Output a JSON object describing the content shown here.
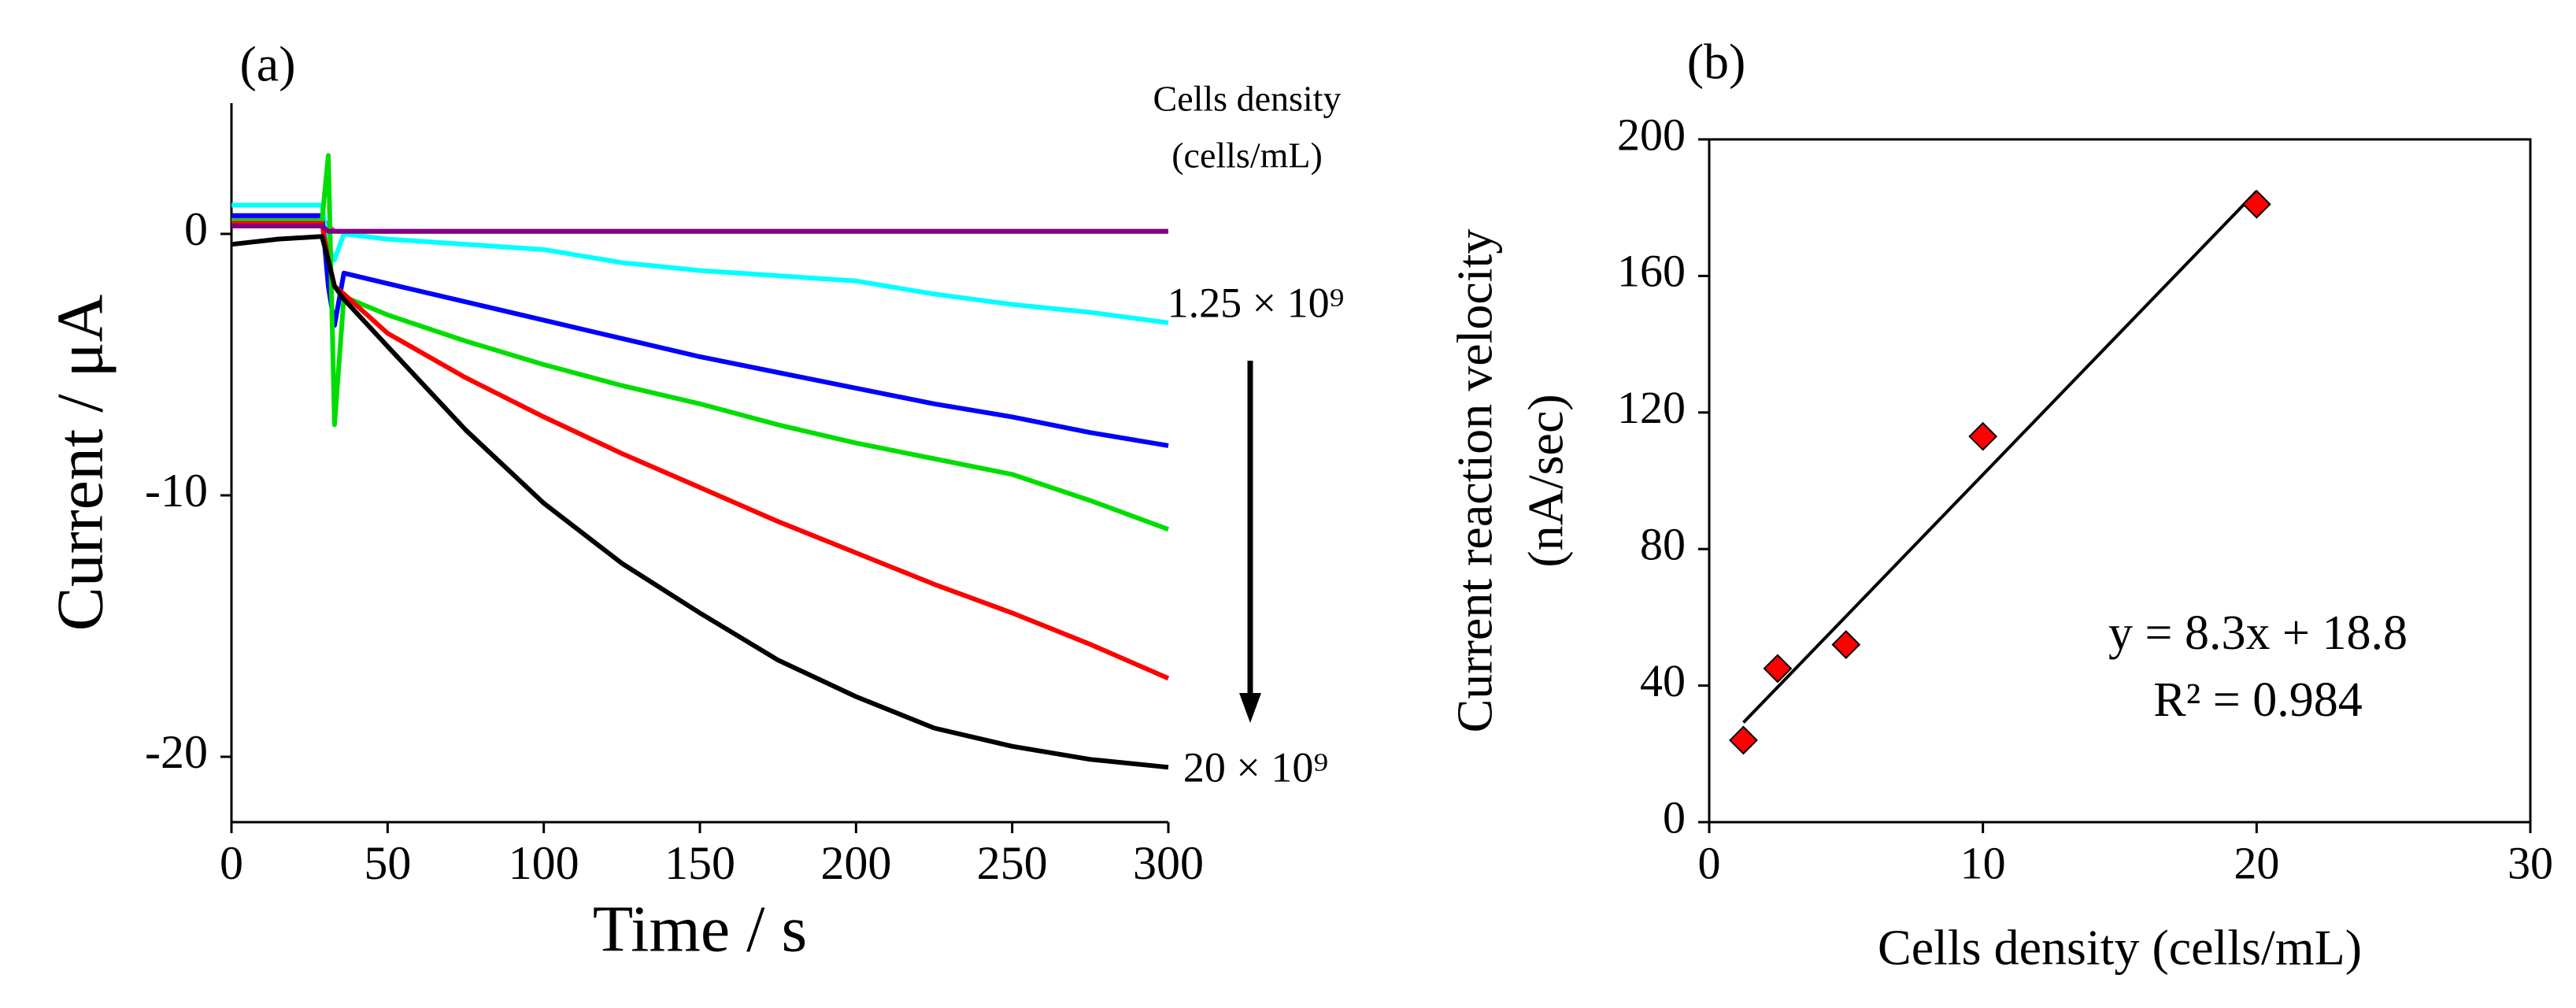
{
  "chart_data": [
    {
      "type": "line",
      "panel_label": "(a)",
      "x_label": "Time / s",
      "y_label": "Current / μA",
      "annotations": [
        "Cells density",
        "(cells/mL)",
        "1.25 × 10⁹",
        "20 × 10⁹"
      ],
      "x": [
        0,
        15,
        29,
        31,
        33,
        36,
        50,
        75,
        100,
        125,
        150,
        175,
        200,
        225,
        250,
        275,
        300
      ],
      "series": [
        {
          "color": "#ff00ff",
          "values": [
            0.6,
            0.6,
            0.6,
            0.3,
            0.1,
            0.1,
            0.1,
            0.1,
            0.1,
            0.1,
            0.1,
            0.1,
            0.1,
            0.1,
            0.1,
            0.1,
            0.1
          ]
        },
        {
          "color": "#00ffff",
          "values": [
            1.1,
            1.1,
            1.1,
            -0.5,
            -1,
            0,
            -0.2,
            -0.4,
            -0.6,
            -1.1,
            -1.4,
            -1.6,
            -1.8,
            -2.3,
            -2.7,
            -3.0,
            -3.4
          ]
        },
        {
          "color": "#0000ff",
          "values": [
            0.7,
            0.7,
            0.7,
            -2,
            -3.5,
            -1.5,
            -1.9,
            -2.6,
            -3.3,
            -4.0,
            -4.7,
            -5.3,
            -5.9,
            -6.5,
            -7.0,
            -7.6,
            -8.1
          ]
        },
        {
          "color": "#00dd00",
          "values": [
            0.5,
            0.5,
            0.5,
            3,
            -7.3,
            -2.4,
            -3.1,
            -4.1,
            -5.0,
            -5.8,
            -6.5,
            -7.3,
            -8.0,
            -8.6,
            -9.2,
            -10.2,
            -11.3
          ]
        },
        {
          "color": "#ff0000",
          "values": [
            0.4,
            0.4,
            0.4,
            -1,
            -2,
            -2.3,
            -3.8,
            -5.5,
            -7.0,
            -8.4,
            -9.7,
            -11.0,
            -12.2,
            -13.4,
            -14.5,
            -15.7,
            -17.0
          ]
        },
        {
          "color": "#000000",
          "values": [
            -0.4,
            -0.2,
            -0.1,
            -1,
            -2,
            -2.5,
            -4.3,
            -7.5,
            -10.3,
            -12.6,
            -14.5,
            -16.3,
            -17.7,
            -18.9,
            -19.6,
            -20.1,
            -20.4
          ]
        },
        {
          "color": "#800080",
          "values": [
            0.3,
            0.3,
            0.3,
            0.1,
            0.1,
            0.1,
            0.1,
            0.1,
            0.1,
            0.1,
            0.1,
            0.1,
            0.1,
            0.1,
            0.1,
            0.1,
            0.1
          ]
        }
      ],
      "xlim": [
        0,
        300
      ],
      "xticks": [
        0,
        50,
        100,
        150,
        200,
        250,
        300
      ],
      "ylim": [
        -22.5,
        5
      ],
      "yticks": [
        0,
        -10,
        -20
      ]
    },
    {
      "type": "scatter",
      "panel_label": "(b)",
      "x_label": "Cells density (cells/mL)",
      "y_label": [
        "Current reaction velocity",
        "(nA/sec)"
      ],
      "annotations": [
        "y = 8.3x + 18.8",
        "R² = 0.984"
      ],
      "x": [
        1.25,
        2.5,
        5,
        10,
        20
      ],
      "values": [
        24,
        45,
        52,
        113,
        181
      ],
      "color": "#ff0000",
      "trendline": {
        "slope": 8.3,
        "intercept": 18.8
      },
      "xlim": [
        0,
        30
      ],
      "xticks": [
        0,
        10,
        20,
        30
      ],
      "ylim": [
        0,
        200
      ],
      "yticks": [
        0,
        40,
        80,
        120,
        160,
        200
      ]
    }
  ]
}
